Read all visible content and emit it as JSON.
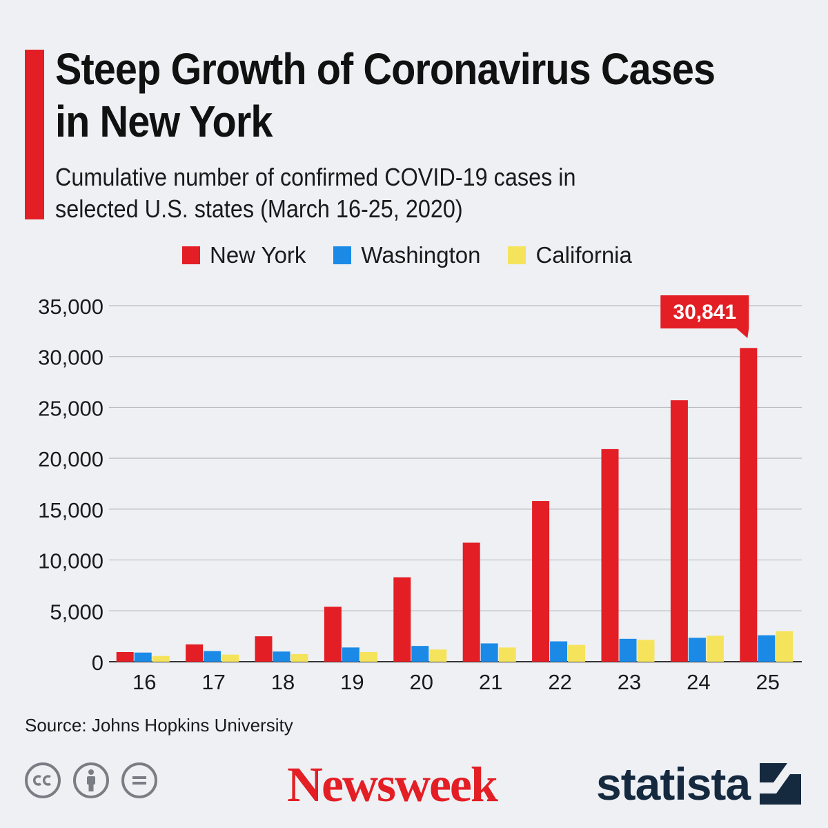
{
  "title": "Steep Growth of Coronavirus Cases in New York",
  "subtitle": "Cumulative number of confirmed COVID-19 cases in selected U.S. states (March 16-25, 2020)",
  "source": "Source: Johns Hopkins University",
  "brands": {
    "newsweek": "Newsweek",
    "statista": "statista"
  },
  "license_icons": [
    "cc-icon",
    "attribution-icon",
    "no-derivatives-icon"
  ],
  "colors": {
    "accent": "#e31e24",
    "new_york": "#e31e24",
    "washington": "#1a8ae6",
    "california": "#f6e35c",
    "brand_dark": "#15293f"
  },
  "chart_data": {
    "type": "bar",
    "categories": [
      "16",
      "17",
      "18",
      "19",
      "20",
      "21",
      "22",
      "23",
      "24",
      "25"
    ],
    "series": [
      {
        "name": "New York",
        "color": "#e31e24",
        "values": [
          950,
          1700,
          2500,
          5400,
          8300,
          11700,
          15800,
          20900,
          25700,
          30841
        ]
      },
      {
        "name": "Washington",
        "color": "#1a8ae6",
        "values": [
          900,
          1050,
          1000,
          1400,
          1550,
          1800,
          2000,
          2250,
          2350,
          2600
        ]
      },
      {
        "name": "California",
        "color": "#f6e35c",
        "values": [
          560,
          700,
          750,
          950,
          1200,
          1400,
          1650,
          2150,
          2550,
          3000
        ]
      }
    ],
    "yticks": [
      "0",
      "5,000",
      "10,000",
      "15,000",
      "20,000",
      "25,000",
      "30,000",
      "35,000"
    ],
    "ylim": [
      0,
      35000
    ],
    "callout": {
      "label": "30,841",
      "series": "New York",
      "category": "25"
    },
    "legend_position": "top",
    "grid": true
  }
}
